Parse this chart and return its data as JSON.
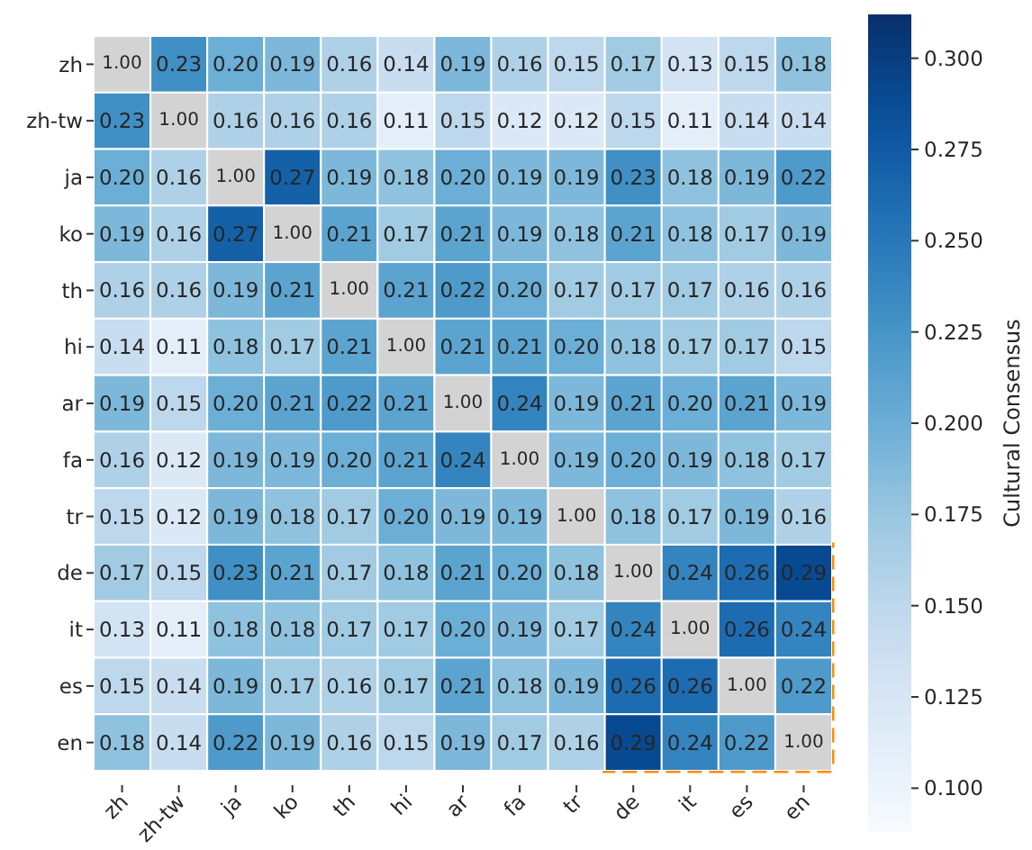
{
  "chart_data": {
    "type": "heatmap",
    "clabel": "Cultural Consensus",
    "categories": [
      "zh",
      "zh-tw",
      "ja",
      "ko",
      "th",
      "hi",
      "ar",
      "fa",
      "tr",
      "de",
      "it",
      "es",
      "en"
    ],
    "y_categories": [
      "zh",
      "zh-tw",
      "ja",
      "ko",
      "th",
      "hi",
      "ar",
      "fa",
      "tr",
      "de",
      "it",
      "es",
      "en"
    ],
    "cells": [
      [
        null,
        0.23,
        0.2,
        0.19,
        0.16,
        0.14,
        0.19,
        0.16,
        0.15,
        0.17,
        0.13,
        0.15,
        0.18
      ],
      [
        0.23,
        null,
        0.16,
        0.16,
        0.16,
        0.11,
        0.15,
        0.12,
        0.12,
        0.15,
        0.11,
        0.14,
        0.14
      ],
      [
        0.2,
        0.16,
        null,
        0.27,
        0.19,
        0.18,
        0.2,
        0.19,
        0.19,
        0.23,
        0.18,
        0.19,
        0.22
      ],
      [
        0.19,
        0.16,
        0.27,
        null,
        0.21,
        0.17,
        0.21,
        0.19,
        0.18,
        0.21,
        0.18,
        0.17,
        0.19
      ],
      [
        0.16,
        0.16,
        0.19,
        0.21,
        null,
        0.21,
        0.22,
        0.2,
        0.17,
        0.17,
        0.17,
        0.16,
        0.16
      ],
      [
        0.14,
        0.11,
        0.18,
        0.17,
        0.21,
        null,
        0.21,
        0.21,
        0.2,
        0.18,
        0.17,
        0.17,
        0.15
      ],
      [
        0.19,
        0.15,
        0.2,
        0.21,
        0.22,
        0.21,
        null,
        0.24,
        0.19,
        0.21,
        0.2,
        0.21,
        0.19
      ],
      [
        0.16,
        0.12,
        0.19,
        0.19,
        0.2,
        0.21,
        0.24,
        null,
        0.19,
        0.2,
        0.19,
        0.18,
        0.17
      ],
      [
        0.15,
        0.12,
        0.19,
        0.18,
        0.17,
        0.2,
        0.19,
        0.19,
        null,
        0.18,
        0.17,
        0.19,
        0.16
      ],
      [
        0.17,
        0.15,
        0.23,
        0.21,
        0.17,
        0.18,
        0.21,
        0.2,
        0.18,
        null,
        0.24,
        0.26,
        0.29
      ],
      [
        0.13,
        0.11,
        0.18,
        0.18,
        0.17,
        0.17,
        0.2,
        0.19,
        0.17,
        0.24,
        null,
        0.26,
        0.24
      ],
      [
        0.15,
        0.14,
        0.19,
        0.17,
        0.16,
        0.17,
        0.21,
        0.18,
        0.19,
        0.26,
        0.26,
        null,
        0.22
      ],
      [
        0.18,
        0.14,
        0.22,
        0.19,
        0.16,
        0.15,
        0.19,
        0.17,
        0.16,
        0.29,
        0.24,
        0.22,
        null
      ]
    ],
    "cell_labels": [
      [
        "1.00",
        "0.23",
        "0.20",
        "0.19",
        "0.16",
        "0.14",
        "0.19",
        "0.16",
        "0.15",
        "0.17",
        "0.13",
        "0.15",
        "0.18"
      ],
      [
        "0.23",
        "1.00",
        "0.16",
        "0.16",
        "0.16",
        "0.11",
        "0.15",
        "0.12",
        "0.12",
        "0.15",
        "0.11",
        "0.14",
        "0.14"
      ],
      [
        "0.20",
        "0.16",
        "1.00",
        "0.27",
        "0.19",
        "0.18",
        "0.20",
        "0.19",
        "0.19",
        "0.23",
        "0.18",
        "0.19",
        "0.22"
      ],
      [
        "0.19",
        "0.16",
        "0.27",
        "1.00",
        "0.21",
        "0.17",
        "0.21",
        "0.19",
        "0.18",
        "0.21",
        "0.18",
        "0.17",
        "0.19"
      ],
      [
        "0.16",
        "0.16",
        "0.19",
        "0.21",
        "1.00",
        "0.21",
        "0.22",
        "0.20",
        "0.17",
        "0.17",
        "0.17",
        "0.16",
        "0.16"
      ],
      [
        "0.14",
        "0.11",
        "0.18",
        "0.17",
        "0.21",
        "1.00",
        "0.21",
        "0.21",
        "0.20",
        "0.18",
        "0.17",
        "0.17",
        "0.15"
      ],
      [
        "0.19",
        "0.15",
        "0.20",
        "0.21",
        "0.22",
        "0.21",
        "1.00",
        "0.24",
        "0.19",
        "0.21",
        "0.20",
        "0.21",
        "0.19"
      ],
      [
        "0.16",
        "0.12",
        "0.19",
        "0.19",
        "0.20",
        "0.21",
        "0.24",
        "1.00",
        "0.19",
        "0.20",
        "0.19",
        "0.18",
        "0.17"
      ],
      [
        "0.15",
        "0.12",
        "0.19",
        "0.18",
        "0.17",
        "0.20",
        "0.19",
        "0.19",
        "1.00",
        "0.18",
        "0.17",
        "0.19",
        "0.16"
      ],
      [
        "0.17",
        "0.15",
        "0.23",
        "0.21",
        "0.17",
        "0.18",
        "0.21",
        "0.20",
        "0.18",
        "1.00",
        "0.24",
        "0.26",
        "0.29"
      ],
      [
        "0.13",
        "0.11",
        "0.18",
        "0.18",
        "0.17",
        "0.17",
        "0.20",
        "0.19",
        "0.17",
        "0.24",
        "1.00",
        "0.26",
        "0.24"
      ],
      [
        "0.15",
        "0.14",
        "0.19",
        "0.17",
        "0.16",
        "0.17",
        "0.21",
        "0.18",
        "0.19",
        "0.26",
        "0.26",
        "1.00",
        "0.22"
      ],
      [
        "0.18",
        "0.14",
        "0.22",
        "0.19",
        "0.16",
        "0.15",
        "0.19",
        "0.17",
        "0.16",
        "0.29",
        "0.24",
        "0.22",
        "1.00"
      ]
    ],
    "clim": [
      0.088,
      0.312
    ],
    "cticks": [
      {
        "value": 0.1,
        "label": "0.100"
      },
      {
        "value": 0.125,
        "label": "0.125"
      },
      {
        "value": 0.15,
        "label": "0.150"
      },
      {
        "value": 0.175,
        "label": "0.175"
      },
      {
        "value": 0.2,
        "label": "0.200"
      },
      {
        "value": 0.225,
        "label": "0.225"
      },
      {
        "value": 0.25,
        "label": "0.250"
      },
      {
        "value": 0.275,
        "label": "0.275"
      },
      {
        "value": 0.3,
        "label": "0.300"
      }
    ]
  }
}
